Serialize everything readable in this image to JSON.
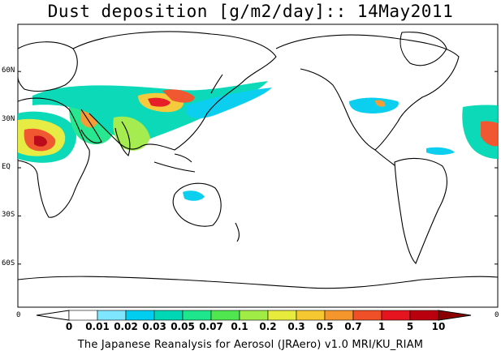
{
  "title": "Dust deposition [g/m2/day]:: 14May2011",
  "lat_labels": [
    {
      "text": "60N",
      "lat": 60
    },
    {
      "text": "30N",
      "lat": 30
    },
    {
      "text": "EQ",
      "lat": 0
    },
    {
      "text": "30S",
      "lat": -30
    },
    {
      "text": "60S",
      "lat": -60
    }
  ],
  "lon_edge_labels": [
    "0",
    "0"
  ],
  "colorbar": {
    "ticks": [
      "0",
      "0.01",
      "0.02",
      "0.03",
      "0.05",
      "0.07",
      "0.1",
      "0.2",
      "0.3",
      "0.5",
      "0.7",
      "1",
      "5",
      "10"
    ],
    "colors": [
      "#ffffff",
      "#ffffff",
      "#7fe6ff",
      "#00cdf0",
      "#00d7b4",
      "#1ee68c",
      "#50e650",
      "#a0eb46",
      "#e6eb3c",
      "#f5c832",
      "#f5962d",
      "#f05028",
      "#e6141e",
      "#b9000f",
      "#8c0000"
    ]
  },
  "footer": "The Japanese Reanalysis for Aerosol (JRAero) v1.0 MRI/KU_RIAM"
}
